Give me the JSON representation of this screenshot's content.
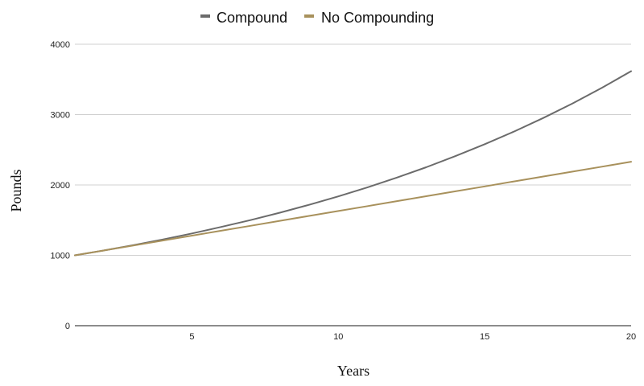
{
  "chart_data": {
    "type": "line",
    "title": "",
    "xlabel": "Years",
    "ylabel": "Pounds",
    "x": [
      1,
      2,
      3,
      4,
      5,
      6,
      7,
      8,
      9,
      10,
      11,
      12,
      13,
      14,
      15,
      16,
      17,
      18,
      19,
      20
    ],
    "xlim": [
      1,
      20
    ],
    "ylim": [
      0,
      4000
    ],
    "xticks": [
      5,
      10,
      15,
      20
    ],
    "yticks": [
      0,
      1000,
      2000,
      3000,
      4000
    ],
    "grid": true,
    "legend_position": "top-center",
    "series": [
      {
        "name": "Compound",
        "color": "#6b6b6b",
        "values": [
          1000,
          1070,
          1145,
          1225,
          1311,
          1403,
          1501,
          1606,
          1718,
          1838,
          1967,
          2105,
          2252,
          2410,
          2579,
          2759,
          2952,
          3159,
          3380,
          3617
        ]
      },
      {
        "name": "No Compounding",
        "color": "#a8915c",
        "values": [
          1000,
          1070,
          1140,
          1210,
          1280,
          1350,
          1420,
          1490,
          1560,
          1630,
          1700,
          1770,
          1840,
          1910,
          1980,
          2050,
          2120,
          2190,
          2260,
          2330
        ]
      }
    ]
  }
}
